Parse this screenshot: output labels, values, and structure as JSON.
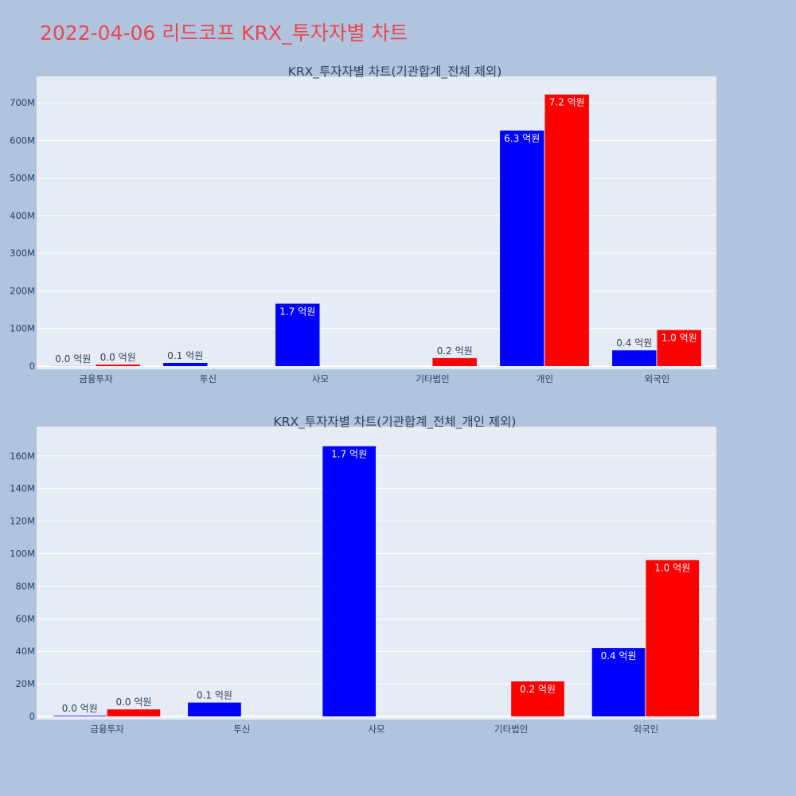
{
  "title": "2022-04-06 리드코프 KRX_투자자별 차트",
  "colors": {
    "background": "#b0c4de",
    "plot_background": "#e5ecf6",
    "series_a": "#0000ff",
    "series_b": "#ff0000",
    "title": "#e8474f",
    "text": "#2a3f5f"
  },
  "chart_data": [
    {
      "type": "bar",
      "title": "KRX_투자자별 차트(기관합계_전체 제외)",
      "categories": [
        "금융투자",
        "투신",
        "사모",
        "기타법인",
        "개인",
        "외국인"
      ],
      "ylim": [
        0,
        770000000
      ],
      "yticks": [
        0,
        100000000,
        200000000,
        300000000,
        400000000,
        500000000,
        600000000,
        700000000
      ],
      "ytick_labels": [
        "0",
        "100M",
        "200M",
        "300M",
        "400M",
        "500M",
        "600M",
        "700M"
      ],
      "grid": true,
      "series": [
        {
          "values": [
            400000,
            8500000,
            166000000,
            null,
            626000000,
            42000000
          ],
          "labels": [
            "0.0 억원",
            "0.1 억원",
            "1.7 억원",
            "",
            "6.3 억원",
            "0.4 억원"
          ]
        },
        {
          "values": [
            4300000,
            null,
            null,
            21500000,
            722000000,
            96000000
          ],
          "labels": [
            "0.0 억원",
            "",
            "",
            "0.2 억원",
            "7.2 억원",
            "1.0 억원"
          ]
        }
      ]
    },
    {
      "type": "bar",
      "title": "KRX_투자자별 차트(기관합계_전체_개인 제외)",
      "categories": [
        "금융투자",
        "투신",
        "사모",
        "기타법인",
        "외국인"
      ],
      "ylim": [
        0,
        178000000
      ],
      "yticks": [
        0,
        20000000,
        40000000,
        60000000,
        80000000,
        100000000,
        120000000,
        140000000,
        160000000
      ],
      "ytick_labels": [
        "0",
        "20M",
        "40M",
        "60M",
        "80M",
        "100M",
        "120M",
        "140M",
        "160M"
      ],
      "grid": true,
      "series": [
        {
          "values": [
            400000,
            8500000,
            166000000,
            null,
            42000000
          ],
          "labels": [
            "0.0 억원",
            "0.1 억원",
            "1.7 억원",
            "",
            "0.4 억원"
          ]
        },
        {
          "values": [
            4300000,
            null,
            null,
            21500000,
            96000000
          ],
          "labels": [
            "0.0 억원",
            "",
            "",
            "0.2 억원",
            "1.0 억원"
          ]
        }
      ]
    }
  ]
}
